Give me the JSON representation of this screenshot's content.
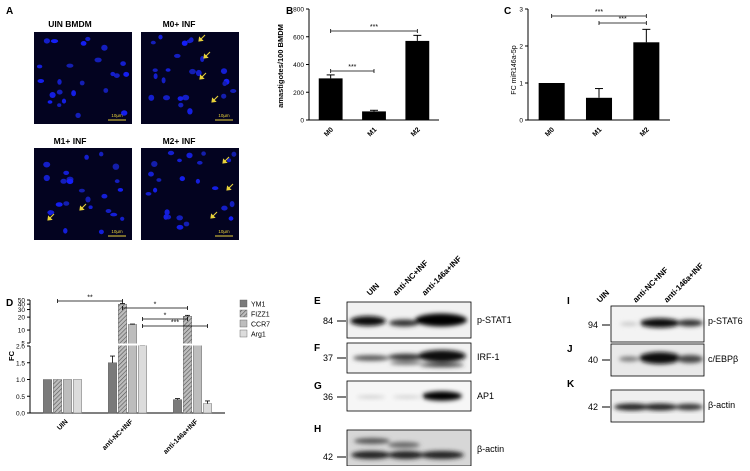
{
  "panel_letters": {
    "a": "A",
    "b": "B",
    "c": "C",
    "d": "D",
    "e": "E",
    "f": "F",
    "g": "G",
    "h": "H",
    "i": "I",
    "j": "J",
    "k": "K"
  },
  "micrographs": {
    "titles": [
      "UIN BMDM",
      "M0+ INF",
      "M1+ INF",
      "M2+ INF"
    ],
    "scale_bar": "10µm",
    "scale_bars": [
      "10µm",
      "10µm",
      "10µm",
      "10µm"
    ]
  },
  "significance": "***",
  "sig_d": [
    "**",
    "*",
    "*",
    "***"
  ],
  "blots": {
    "col_labels_e": [
      "UIN",
      "anti-NC+INF",
      "anti-146a+INF"
    ],
    "col_labels_i": [
      "UIN",
      "anti-NC+INF",
      "anti-146a+INF"
    ],
    "e": {
      "mw": "84",
      "label": "p-STAT1"
    },
    "f": {
      "mw": "37",
      "label": "IRF-1"
    },
    "g": {
      "mw": "36",
      "label": "AP1"
    },
    "h": {
      "mw": "42",
      "label": "β-actin"
    },
    "i": {
      "mw": "94",
      "label": "p-STAT6"
    },
    "j": {
      "mw": "40",
      "label": "c/EBPβ"
    },
    "k": {
      "mw": "42",
      "label": "β-actin"
    }
  },
  "chart_data": [
    {
      "type": "bar",
      "panel": "B",
      "categories": [
        "M0",
        "M1",
        "M2"
      ],
      "values": [
        300,
        62,
        570
      ],
      "errors": [
        25,
        8,
        40
      ],
      "ylabel": "amastigotes/100 BMDM",
      "ylim": [
        0,
        800
      ],
      "yticks": [
        0,
        200,
        400,
        600,
        800
      ],
      "significance": [
        {
          "from": "M0",
          "to": "M1",
          "label": "***"
        },
        {
          "from": "M0",
          "to": "M2",
          "label": "***"
        }
      ]
    },
    {
      "type": "bar",
      "panel": "C",
      "categories": [
        "M0",
        "M1",
        "M2"
      ],
      "values": [
        1.0,
        0.6,
        2.1
      ],
      "errors": [
        0,
        0.25,
        0.35
      ],
      "ylabel": "FC miR146a-5p",
      "ylim": [
        0,
        3
      ],
      "yticks": [
        0,
        1,
        2,
        3
      ],
      "significance": [
        {
          "from": "M0",
          "to": "M2",
          "label": "***"
        },
        {
          "from": "M1",
          "to": "M2",
          "label": "***"
        }
      ]
    },
    {
      "type": "bar",
      "panel": "D",
      "categories": [
        "UIN",
        "anti-NC+INF",
        "anti-146a+INF"
      ],
      "series": [
        {
          "name": "YM1",
          "values": [
            1.0,
            1.5,
            0.4
          ],
          "errors": [
            0,
            0.2,
            0.03
          ]
        },
        {
          "name": "FIZZ1",
          "values": [
            1.0,
            40,
            21
          ],
          "errors": [
            0,
            1.5,
            1
          ]
        },
        {
          "name": "CCR7",
          "values": [
            1.0,
            13.5,
            3.0
          ],
          "errors": [
            0,
            0.3,
            0.2
          ]
        },
        {
          "name": "Arg1",
          "values": [
            1.0,
            2.6,
            0.28
          ],
          "errors": [
            0,
            0.1,
            0.08
          ]
        }
      ],
      "ylabel": "FC",
      "ylim": [
        0,
        50
      ],
      "yticks_lower": [
        "0.0",
        "0.5",
        "1.0",
        "1.5",
        "2.0"
      ],
      "yticks_upper": [
        "5",
        "10",
        "20",
        "30",
        "40",
        "50"
      ]
    }
  ]
}
